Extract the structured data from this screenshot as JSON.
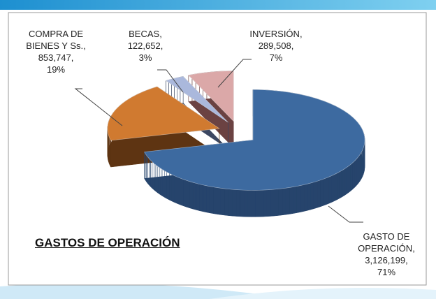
{
  "chart_data": {
    "type": "pie3d",
    "title": "GASTOS DE OPERACIÓN",
    "categories": [
      "GASTO DE OPERACIÓN",
      "COMPRA DE BIENES Y Ss.",
      "BECAS",
      "INVERSIÓN"
    ],
    "values": [
      3126199,
      853747,
      122652,
      289508
    ],
    "value_labels": [
      "3,126,199",
      "853,747",
      "122,652",
      "289,508"
    ],
    "percent_values": [
      71,
      19,
      3,
      7
    ],
    "percent_labels": [
      "71%",
      "19%",
      "3%",
      "7%"
    ],
    "label_separator": ",",
    "colors": [
      "#3d6aa0",
      "#d07a30",
      "#aab8dc",
      "#dba8a8"
    ],
    "side_colors": [
      "#26446c",
      "#5e3412",
      "#3c4862",
      "#6b4242"
    ]
  }
}
